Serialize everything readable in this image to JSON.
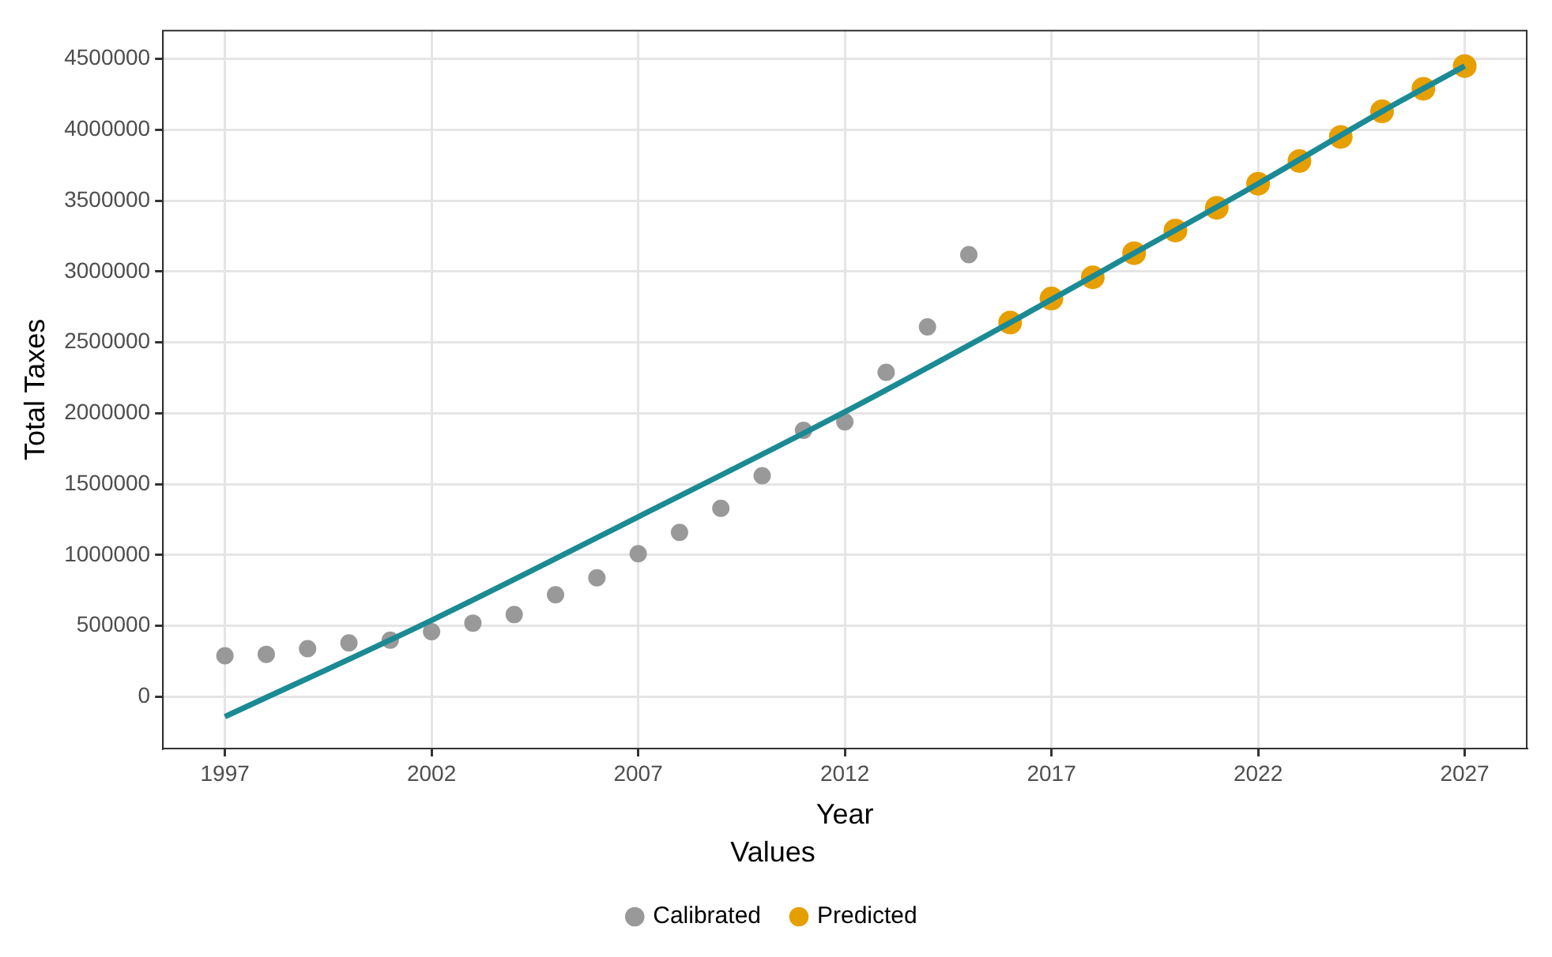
{
  "chart_data": {
    "type": "scatter",
    "xlabel": "Year",
    "ylabel": "Total Taxes",
    "legend_title": "Values",
    "legend": "bottom",
    "grid": true,
    "marker": "circle",
    "xlim": [
      1995.5,
      2028.5
    ],
    "xticks": [
      1997,
      2002,
      2007,
      2012,
      2017,
      2022,
      2027
    ],
    "ylim": [
      -365000,
      4700000
    ],
    "yticks": [
      0,
      500000,
      1000000,
      1500000,
      2000000,
      2500000,
      3000000,
      3500000,
      4000000,
      4500000
    ],
    "series": [
      {
        "type": "line",
        "marker": "none",
        "color": "#1b8a94",
        "x": [
          1997,
          2002,
          2007,
          2012,
          2016,
          2019,
          2022,
          2025,
          2027
        ],
        "values": [
          -140000,
          540000,
          1270000,
          2010000,
          2640000,
          3130000,
          3620000,
          4130000,
          4450000
        ]
      },
      {
        "name": "Calibrated",
        "color": "#999999",
        "x": [
          1997,
          1998,
          1999,
          2000,
          2001,
          2002,
          2003,
          2004,
          2005,
          2006,
          2007,
          2008,
          2009,
          2010,
          2011,
          2012,
          2013,
          2014,
          2015
        ],
        "values": [
          290000,
          300000,
          340000,
          380000,
          400000,
          460000,
          520000,
          580000,
          720000,
          840000,
          1010000,
          1160000,
          1330000,
          1560000,
          1880000,
          1940000,
          2290000,
          2610000,
          3120000
        ]
      },
      {
        "name": "Predicted",
        "color": "#e69f00",
        "x": [
          2016,
          2017,
          2018,
          2019,
          2020,
          2021,
          2022,
          2023,
          2024,
          2025,
          2026,
          2027
        ],
        "values": [
          2640000,
          2810000,
          2960000,
          3130000,
          3290000,
          3450000,
          3620000,
          3780000,
          3950000,
          4130000,
          4290000,
          4450000
        ]
      }
    ]
  }
}
